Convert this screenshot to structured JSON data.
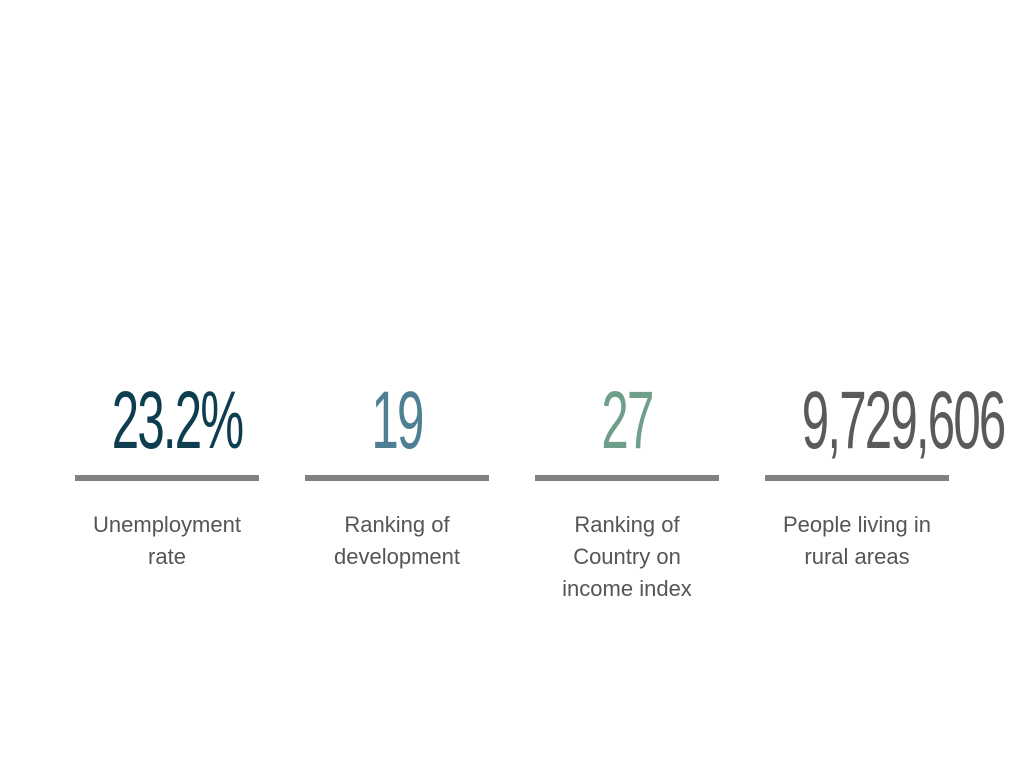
{
  "stats": [
    {
      "value": "23.2%",
      "label": "Unemployment\nrate",
      "color": "#0d3d4f"
    },
    {
      "value": "19",
      "label": "Ranking of\ndevelopment",
      "color": "#4f7f93"
    },
    {
      "value": "27",
      "label": "Ranking of\nCountry  on\nincome index",
      "color": "#6f9f88"
    },
    {
      "value": "9,729,606",
      "label": "People living in\nrural areas",
      "color": "#5a5a5a"
    }
  ]
}
